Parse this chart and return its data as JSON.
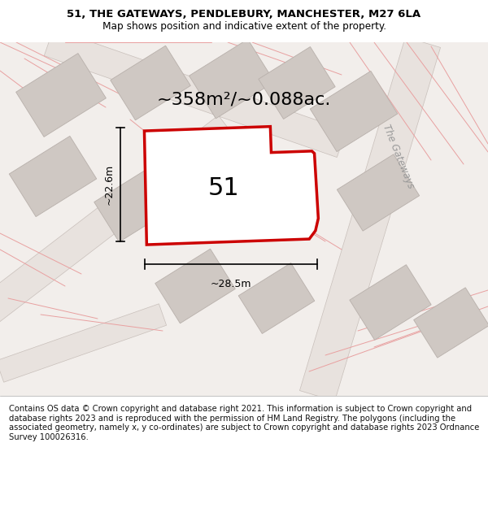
{
  "title_line1": "51, THE GATEWAYS, PENDLEBURY, MANCHESTER, M27 6LA",
  "title_line2": "Map shows position and indicative extent of the property.",
  "footer_text": "Contains OS data © Crown copyright and database right 2021. This information is subject to Crown copyright and database rights 2023 and is reproduced with the permission of HM Land Registry. The polygons (including the associated geometry, namely x, y co-ordinates) are subject to Crown copyright and database rights 2023 Ordnance Survey 100026316.",
  "area_label": "~358m²/~0.088ac.",
  "width_label": "~28.5m",
  "height_label": "~22.6m",
  "plot_number": "51",
  "bg_color": "#f2eeeb",
  "plot_line_color": "#cc0000",
  "street_label": "The Gateways",
  "road_fill": "#e8e2de",
  "road_edge": "#c8bfba",
  "building_fill": "#cfc8c3",
  "building_edge": "#b8b0ab",
  "cadastral_color": "#e8a0a0",
  "title_fontsize": 9.5,
  "footer_fontsize": 7.2
}
